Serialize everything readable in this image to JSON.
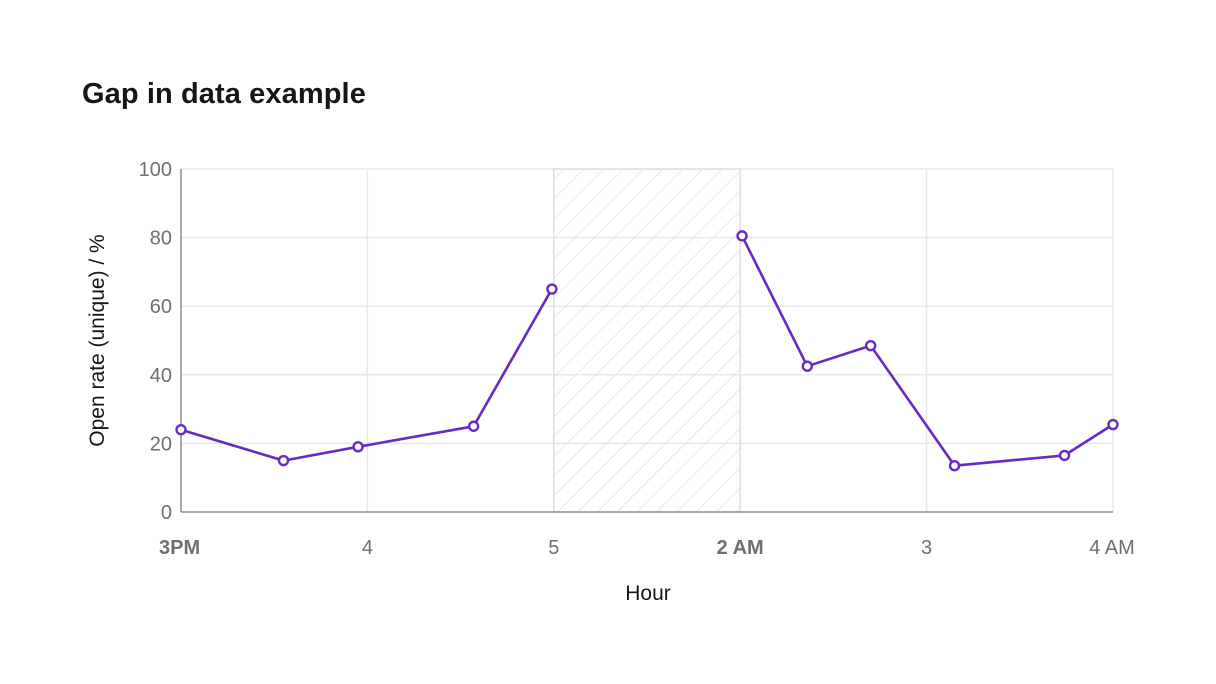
{
  "chart_data": {
    "type": "line",
    "title": "Gap in data example",
    "xlabel": "Hour",
    "ylabel": "Open rate (unique) / %",
    "ylim": [
      0,
      100
    ],
    "y_ticks": [
      0,
      20,
      40,
      60,
      80,
      100
    ],
    "x_ticks": [
      {
        "label": "3PM",
        "hour": 15,
        "major": true
      },
      {
        "label": "4",
        "hour": 16,
        "major": false
      },
      {
        "label": "5",
        "hour": 17,
        "major": false
      },
      {
        "label": "2 AM",
        "hour": 26,
        "major": true
      },
      {
        "label": "3",
        "hour": 27,
        "major": false
      },
      {
        "label": "4 AM",
        "hour": 28,
        "major": false
      }
    ],
    "gap": {
      "from_hour": 17,
      "to_hour": 26
    },
    "grid": true,
    "legend": "none",
    "colors": {
      "series": "#6929c4",
      "grid": "#e8e8e8",
      "axis": "#8d8d8d"
    },
    "series": [
      {
        "segments": [
          [
            {
              "hour": 15.0,
              "y": 24
            },
            {
              "hour": 15.55,
              "y": 15
            },
            {
              "hour": 15.95,
              "y": 19
            },
            {
              "hour": 16.57,
              "y": 25
            },
            {
              "hour": 16.99,
              "y": 65
            }
          ],
          [
            {
              "hour": 26.01,
              "y": 80.5
            },
            {
              "hour": 26.36,
              "y": 42.5
            },
            {
              "hour": 26.7,
              "y": 48.5
            },
            {
              "hour": 27.15,
              "y": 13.5
            },
            {
              "hour": 27.74,
              "y": 16.5
            },
            {
              "hour": 28.0,
              "y": 25.5
            }
          ]
        ]
      }
    ]
  }
}
